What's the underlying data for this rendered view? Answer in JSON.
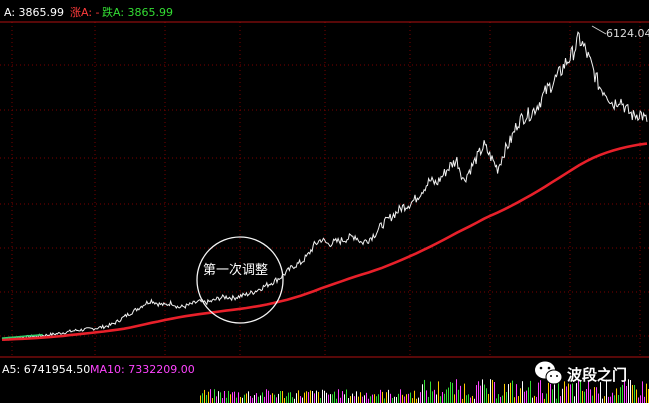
{
  "header": {
    "index_label": "A: 3865.99",
    "rise_label": "涨A: -",
    "fall_label": "跌A: 3865.99"
  },
  "annotation": {
    "text": "第一次调整"
  },
  "peak_label": "6124.04",
  "volume_header": {
    "ma5_label": "A5: 6741954.50",
    "ma10_label": "MA10: 7332209.00"
  },
  "watermark": {
    "text": "波段之门",
    "icon": "wechat-icon"
  },
  "colors": {
    "background": "#000000",
    "grid": "#8b0000",
    "price_line": "#ffffff",
    "ma_line": "#e8202a",
    "rise_text": "#ff3b3b",
    "fall_text": "#33dd33",
    "ma10_text": "#ff44ff",
    "index_text": "#ffffff"
  },
  "chart_data": {
    "type": "line",
    "title": "",
    "xlabel": "",
    "ylabel": "",
    "peak_value": 6124.04,
    "series": [
      {
        "name": "",
        "values": [
          1000,
          1010,
          1020,
          1030,
          1040,
          1050,
          1060,
          1075,
          1090,
          1110,
          1130,
          1150,
          1160,
          1175,
          1190,
          1210,
          1240,
          1300,
          1380,
          1450,
          1520,
          1600,
          1660,
          1600,
          1580,
          1620,
          1540,
          1560,
          1600,
          1640,
          1620,
          1650,
          1700,
          1720,
          1700,
          1730,
          1760,
          1800,
          1860,
          1920,
          1980,
          2050,
          2150,
          2250,
          2300,
          2420,
          2600,
          2700,
          2620,
          2650,
          2680,
          2720,
          2760,
          2640,
          2700,
          2800,
          2950,
          3050,
          3150,
          3250,
          3300,
          3400,
          3550,
          3700,
          3650,
          3800,
          3950,
          4050,
          3700,
          3900,
          4100,
          4300,
          4100,
          3900,
          4200,
          4400,
          4700,
          4800,
          4850,
          5000,
          5200,
          5350,
          5500,
          5700,
          5850,
          6124,
          5900,
          5600,
          5300,
          5200,
          5000,
          5100,
          4900,
          4800,
          4850,
          4700
        ]
      },
      {
        "name": "",
        "values": [
          990,
          995,
          1000,
          1005,
          1010,
          1018,
          1026,
          1035,
          1045,
          1055,
          1068,
          1080,
          1092,
          1105,
          1118,
          1130,
          1145,
          1160,
          1178,
          1200,
          1225,
          1250,
          1278,
          1300,
          1325,
          1348,
          1370,
          1390,
          1408,
          1425,
          1440,
          1455,
          1470,
          1485,
          1500,
          1515,
          1530,
          1548,
          1568,
          1590,
          1615,
          1642,
          1672,
          1705,
          1740,
          1778,
          1820,
          1865,
          1905,
          1945,
          1985,
          2025,
          2065,
          2100,
          2135,
          2175,
          2215,
          2260,
          2308,
          2358,
          2408,
          2460,
          2515,
          2570,
          2628,
          2688,
          2750,
          2812,
          2870,
          2928,
          2988,
          3050,
          3105,
          3155,
          3210,
          3268,
          3330,
          3395,
          3460,
          3528,
          3598,
          3670,
          3742,
          3815,
          3888,
          3960,
          4025,
          4082,
          4132,
          4175,
          4212,
          4245,
          4272,
          4295,
          4315,
          4330
        ]
      }
    ],
    "ylim": [
      900,
      6400
    ],
    "grid": true,
    "legend": "none"
  }
}
